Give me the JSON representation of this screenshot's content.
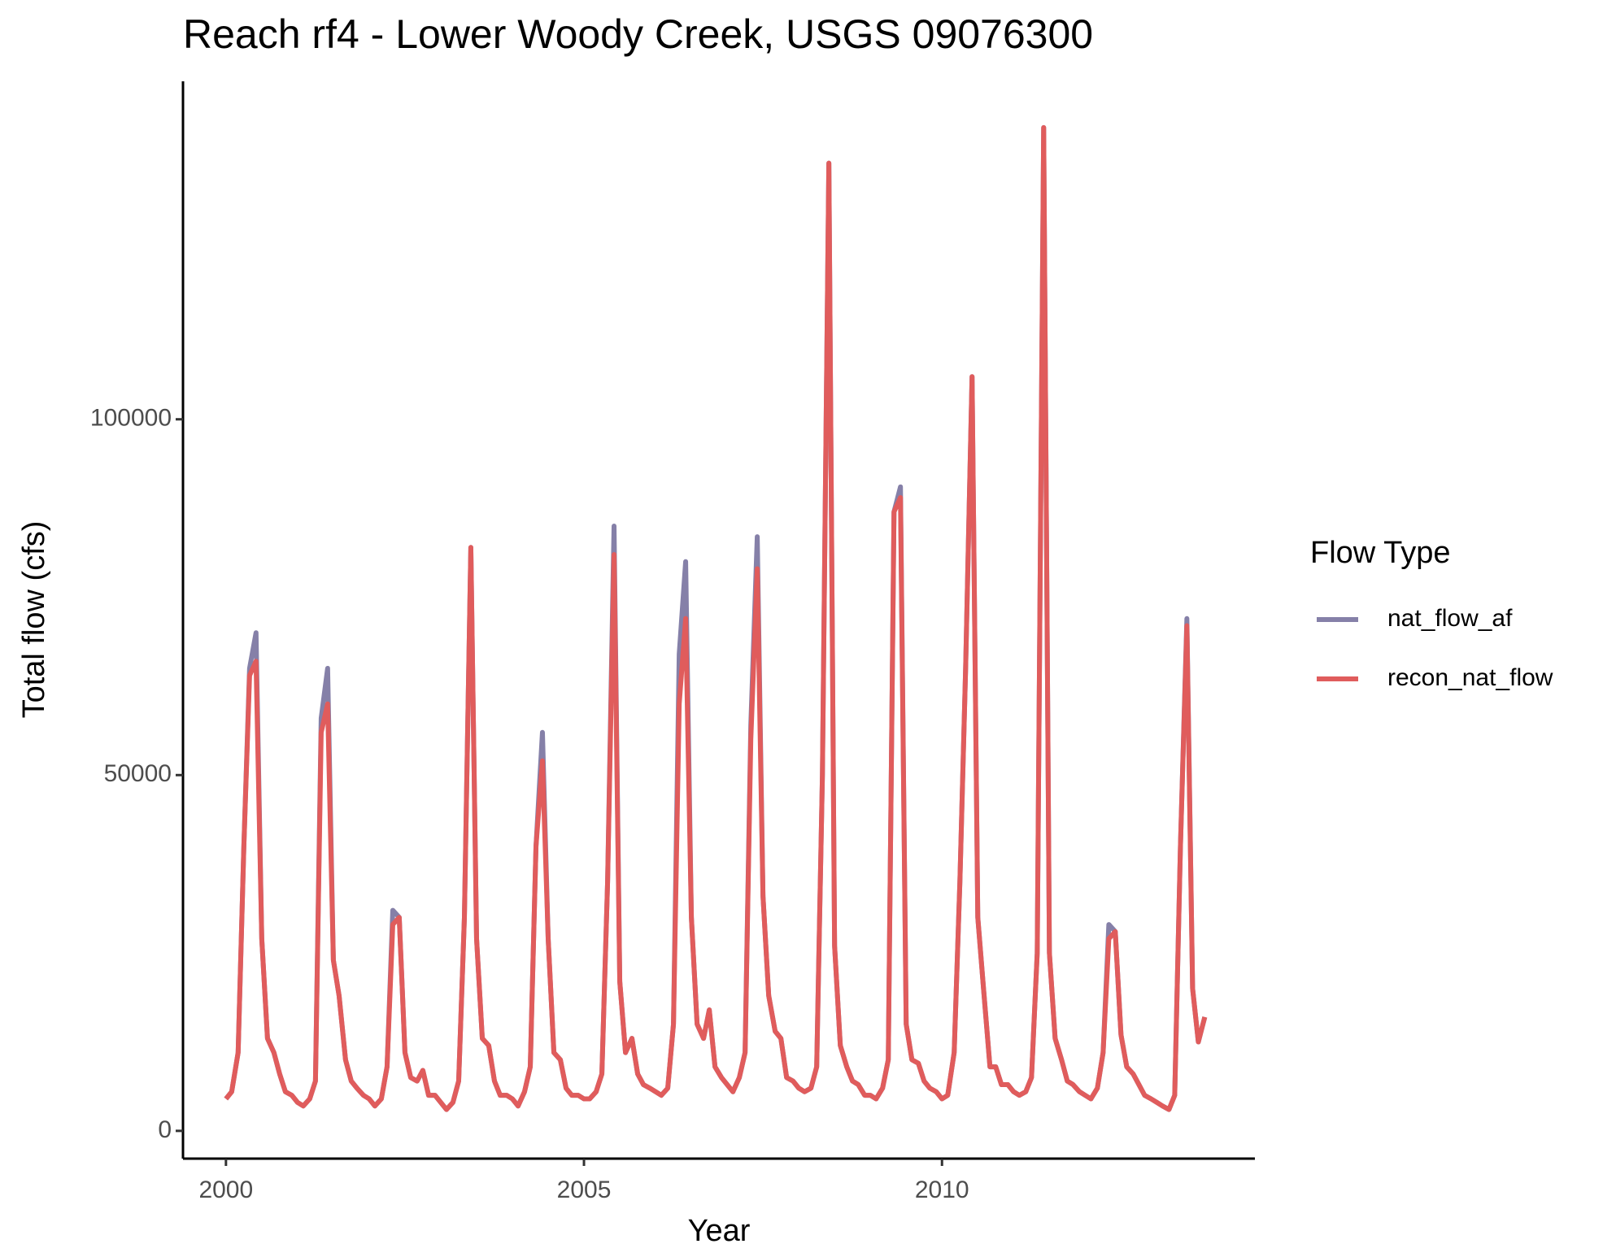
{
  "chart_data": {
    "type": "line",
    "title": "Reach rf4 - Lower Woody Creek, USGS 09076300",
    "x_label": "Year",
    "y_label": "Total flow (cfs)",
    "legend_title": "Flow Type",
    "legend_position": "right",
    "grid": false,
    "xlim": [
      1999.4,
      2014.37
    ],
    "xticks": [
      2000,
      2005,
      2010
    ],
    "ylim": [
      -3900,
      147500
    ],
    "yticks": [
      0,
      50000,
      100000
    ],
    "x": [
      2000,
      2000.08,
      2000.17,
      2000.25,
      2000.33,
      2000.42,
      2000.5,
      2000.58,
      2000.67,
      2000.75,
      2000.83,
      2000.92,
      2001,
      2001.08,
      2001.17,
      2001.25,
      2001.33,
      2001.42,
      2001.5,
      2001.58,
      2001.67,
      2001.75,
      2001.83,
      2001.92,
      2002,
      2002.08,
      2002.17,
      2002.25,
      2002.33,
      2002.42,
      2002.5,
      2002.58,
      2002.67,
      2002.75,
      2002.83,
      2002.92,
      2003,
      2003.08,
      2003.17,
      2003.25,
      2003.33,
      2003.42,
      2003.5,
      2003.58,
      2003.67,
      2003.75,
      2003.83,
      2003.92,
      2004,
      2004.08,
      2004.17,
      2004.25,
      2004.33,
      2004.42,
      2004.5,
      2004.58,
      2004.67,
      2004.75,
      2004.83,
      2004.92,
      2005,
      2005.08,
      2005.17,
      2005.25,
      2005.33,
      2005.42,
      2005.5,
      2005.58,
      2005.67,
      2005.75,
      2005.83,
      2005.92,
      2006,
      2006.08,
      2006.17,
      2006.25,
      2006.33,
      2006.42,
      2006.5,
      2006.58,
      2006.67,
      2006.75,
      2006.83,
      2006.92,
      2007,
      2007.08,
      2007.17,
      2007.25,
      2007.33,
      2007.42,
      2007.5,
      2007.58,
      2007.67,
      2007.75,
      2007.83,
      2007.92,
      2008,
      2008.08,
      2008.17,
      2008.25,
      2008.33,
      2008.42,
      2008.5,
      2008.58,
      2008.67,
      2008.75,
      2008.83,
      2008.92,
      2009,
      2009.08,
      2009.17,
      2009.25,
      2009.33,
      2009.42,
      2009.5,
      2009.58,
      2009.67,
      2009.75,
      2009.83,
      2009.92,
      2010,
      2010.08,
      2010.17,
      2010.25,
      2010.33,
      2010.42,
      2010.5,
      2010.58,
      2010.67,
      2010.75,
      2010.83,
      2010.92,
      2011,
      2011.08,
      2011.17,
      2011.25,
      2011.33,
      2011.42,
      2011.5,
      2011.58,
      2011.67,
      2011.75,
      2011.83,
      2011.92,
      2012,
      2012.08,
      2012.17,
      2012.25,
      2012.33,
      2012.42,
      2012.5,
      2012.58,
      2012.67,
      2012.75,
      2012.83,
      2012.92,
      2013,
      2013.08,
      2013.17,
      2013.25,
      2013.33,
      2013.42,
      2013.5,
      2013.58,
      2013.67
    ],
    "series": [
      {
        "name": "nat_flow_af",
        "color": "#8580a8",
        "values": [
          4500,
          5500,
          11000,
          40000,
          65000,
          70000,
          27000,
          13000,
          11000,
          8000,
          5500,
          5000,
          4000,
          3500,
          4500,
          7000,
          58000,
          65000,
          24000,
          19000,
          10000,
          7000,
          6000,
          5000,
          4500,
          3500,
          4500,
          9000,
          31000,
          30000,
          11000,
          7500,
          7000,
          8500,
          5000,
          5000,
          4000,
          3000,
          4000,
          7000,
          30000,
          82000,
          27000,
          13000,
          12000,
          7000,
          5000,
          5000,
          4500,
          3500,
          5500,
          9000,
          40000,
          56000,
          27000,
          11000,
          10000,
          6000,
          5000,
          5000,
          4500,
          4500,
          5500,
          8000,
          35000,
          85000,
          21000,
          11000,
          13000,
          8000,
          6500,
          6000,
          5500,
          5000,
          6000,
          15000,
          67000,
          80000,
          30000,
          15000,
          13000,
          17000,
          9000,
          7500,
          6500,
          5500,
          7500,
          11000,
          57000,
          83500,
          33000,
          19000,
          14000,
          13000,
          7500,
          7000,
          6000,
          5500,
          6000,
          9000,
          50000,
          136000,
          26000,
          12000,
          9000,
          7000,
          6500,
          5000,
          5000,
          4500,
          6000,
          10000,
          87000,
          90500,
          15000,
          10000,
          9500,
          7000,
          6000,
          5500,
          4500,
          5000,
          11000,
          35000,
          65000,
          106000,
          30000,
          20000,
          9000,
          9000,
          6500,
          6500,
          5500,
          5000,
          5500,
          7500,
          25000,
          141000,
          25000,
          13000,
          10000,
          7000,
          6500,
          5500,
          5000,
          4500,
          6000,
          11000,
          29000,
          28000,
          13500,
          9000,
          8000,
          6500,
          5000,
          4500,
          4000,
          3500,
          3000,
          5000,
          40000,
          72000,
          20000,
          12500,
          16000
        ]
      },
      {
        "name": "recon_nat_flow",
        "color": "#e05c5c",
        "values": [
          4500,
          5500,
          11000,
          40000,
          64000,
          66000,
          27000,
          13000,
          11000,
          8000,
          5500,
          5000,
          4000,
          3500,
          4500,
          7000,
          56000,
          60000,
          24000,
          19000,
          10000,
          7000,
          6000,
          5000,
          4500,
          3500,
          4500,
          9000,
          29000,
          30000,
          11000,
          7500,
          7000,
          8500,
          5000,
          5000,
          4000,
          3000,
          4000,
          7000,
          30000,
          82000,
          27000,
          13000,
          12000,
          7000,
          5000,
          5000,
          4500,
          3500,
          5500,
          9000,
          40000,
          52000,
          27000,
          11000,
          10000,
          6000,
          5000,
          5000,
          4500,
          4500,
          5500,
          8000,
          35000,
          81000,
          21000,
          11000,
          13000,
          8000,
          6500,
          6000,
          5500,
          5000,
          6000,
          15000,
          60000,
          72000,
          30000,
          15000,
          13000,
          17000,
          9000,
          7500,
          6500,
          5500,
          7500,
          11000,
          55000,
          79000,
          33000,
          19000,
          14000,
          13000,
          7500,
          7000,
          6000,
          5500,
          6000,
          9000,
          50000,
          136000,
          26000,
          12000,
          9000,
          7000,
          6500,
          5000,
          5000,
          4500,
          6000,
          10000,
          87000,
          89000,
          15000,
          10000,
          9500,
          7000,
          6000,
          5500,
          4500,
          5000,
          11000,
          35000,
          65000,
          106000,
          30000,
          20000,
          9000,
          9000,
          6500,
          6500,
          5500,
          5000,
          5500,
          7500,
          25000,
          141000,
          25000,
          13000,
          10000,
          7000,
          6500,
          5500,
          5000,
          4500,
          6000,
          11000,
          27000,
          28000,
          13500,
          9000,
          8000,
          6500,
          5000,
          4500,
          4000,
          3500,
          3000,
          5000,
          40000,
          71000,
          20000,
          12500,
          16000
        ]
      }
    ]
  }
}
